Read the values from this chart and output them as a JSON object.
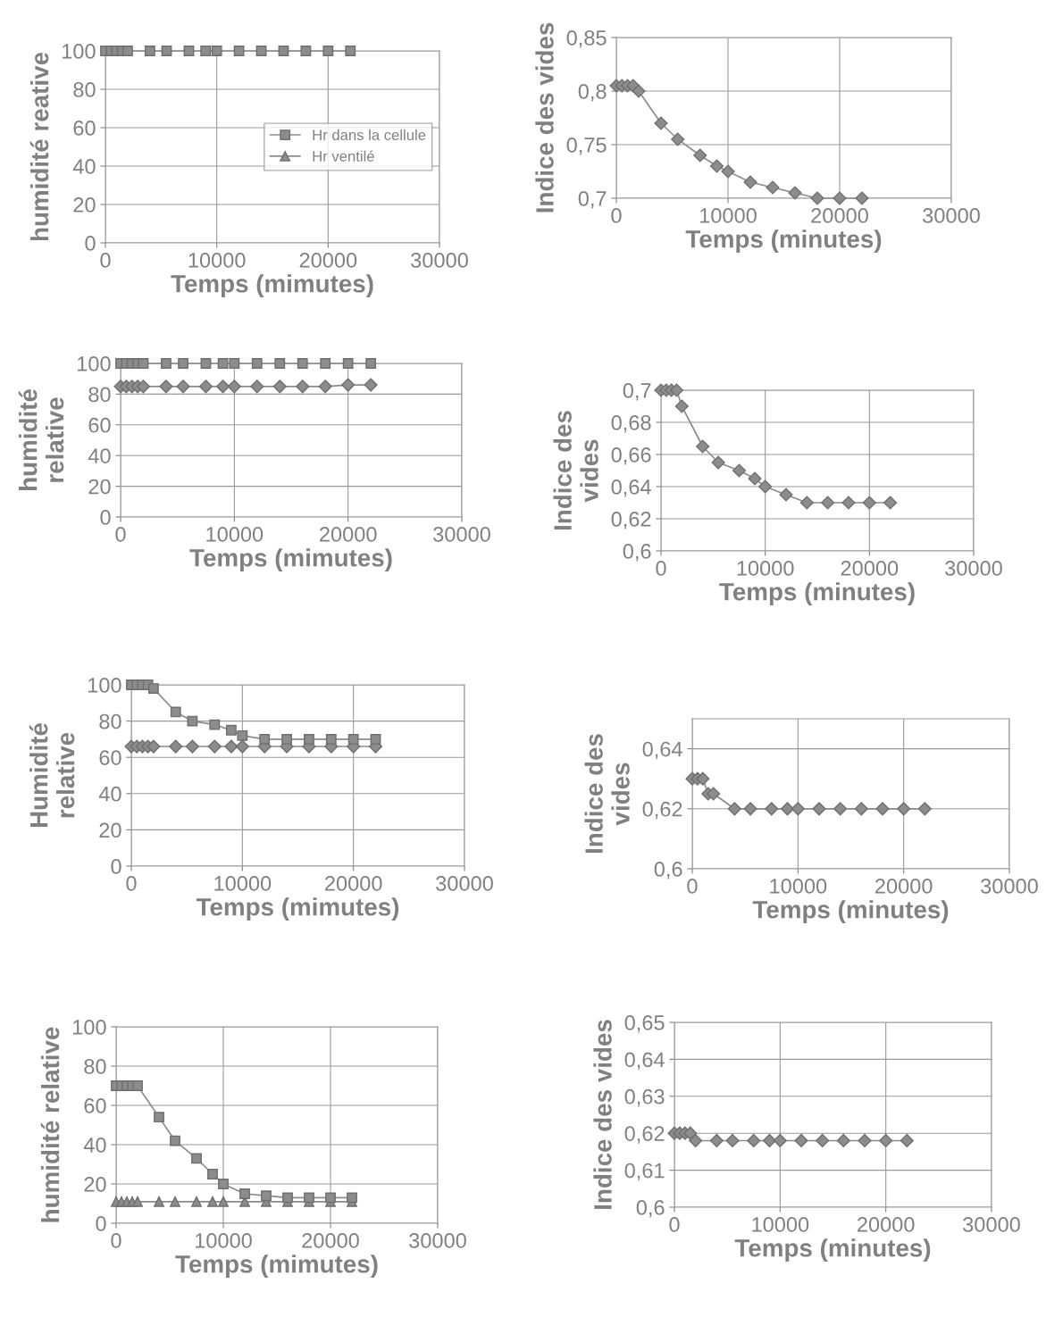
{
  "chart_data": [
    {
      "type": "line",
      "ylabel": "humidité reative",
      "xlabel": "Temps (mimutes)",
      "x": [
        0,
        500,
        1000,
        1500,
        2000,
        4000,
        5500,
        7500,
        9000,
        10000,
        12000,
        14000,
        16000,
        18000,
        20000,
        22000
      ],
      "series": [
        {
          "name": "Hr dans la cellule",
          "color": "#8c8c8c",
          "marker": "square",
          "values": [
            100,
            100,
            100,
            100,
            100,
            100,
            100,
            100,
            100,
            100,
            100,
            100,
            100,
            100,
            100,
            100
          ]
        },
        {
          "name": "Hr ventilé",
          "color": "#8c8c8c",
          "marker": "triangle",
          "values": [
            null,
            null,
            null,
            null,
            null,
            null,
            null,
            null,
            null,
            null,
            null,
            null,
            null,
            null,
            null,
            null
          ]
        }
      ],
      "xlim": [
        0,
        30000
      ],
      "xticks": [
        0,
        10000,
        20000,
        30000
      ],
      "ylim": [
        0,
        100
      ],
      "yticks": [
        0,
        20,
        40,
        60,
        80,
        100
      ],
      "grid": true,
      "legend": "right"
    },
    {
      "type": "line",
      "ylabel": "Indice des vides",
      "xlabel": "Temps (minutes)",
      "x": [
        0,
        500,
        1000,
        1500,
        2000,
        4000,
        5500,
        7500,
        9000,
        10000,
        12000,
        14000,
        16000,
        18000,
        20000,
        22000
      ],
      "series": [
        {
          "color": "#8c8c8c",
          "marker": "diamond",
          "values": [
            0.805,
            0.805,
            0.805,
            0.805,
            0.8,
            0.77,
            0.755,
            0.74,
            0.73,
            0.725,
            0.715,
            0.71,
            0.705,
            0.7,
            0.7,
            0.7
          ]
        }
      ],
      "xlim": [
        0,
        30000
      ],
      "xticks": [
        0,
        10000,
        20000,
        30000
      ],
      "ylim": [
        0.7,
        0.85
      ],
      "yticks": [
        {
          "value": 0.7,
          "label": "0,7"
        },
        {
          "value": 0.75,
          "label": "0,75"
        },
        {
          "value": 0.8,
          "label": "0,8"
        },
        {
          "value": 0.85,
          "label": "0,85"
        }
      ],
      "grid": true
    },
    {
      "type": "line",
      "ylabel": "humidité\nrelative",
      "xlabel": "Temps (mimutes)",
      "x": [
        0,
        500,
        1000,
        1500,
        2000,
        4000,
        5500,
        7500,
        9000,
        10000,
        12000,
        14000,
        16000,
        18000,
        20000,
        22000
      ],
      "series": [
        {
          "color": "#8c8c8c",
          "marker": "square",
          "values": [
            100,
            100,
            100,
            100,
            100,
            100,
            100,
            100,
            100,
            100,
            100,
            100,
            100,
            100,
            100,
            100
          ]
        },
        {
          "color": "#8c8c8c",
          "marker": "diamond",
          "values": [
            85,
            85,
            85,
            85,
            85,
            85,
            85,
            85,
            85,
            85,
            85,
            85,
            85,
            85,
            86,
            86
          ]
        }
      ],
      "xlim": [
        0,
        30000
      ],
      "xticks": [
        0,
        10000,
        20000,
        30000
      ],
      "ylim": [
        0,
        100
      ],
      "yticks": [
        0,
        20,
        40,
        60,
        80,
        100
      ],
      "grid": true
    },
    {
      "type": "line",
      "ylabel": "Indice des\nvides",
      "xlabel": "Temps (minutes)",
      "x": [
        0,
        500,
        1000,
        1500,
        2000,
        4000,
        5500,
        7500,
        9000,
        10000,
        12000,
        14000,
        16000,
        18000,
        20000,
        22000
      ],
      "series": [
        {
          "color": "#8c8c8c",
          "marker": "diamond",
          "values": [
            0.7,
            0.7,
            0.7,
            0.7,
            0.69,
            0.665,
            0.655,
            0.65,
            0.645,
            0.64,
            0.635,
            0.63,
            0.63,
            0.63,
            0.63,
            0.63
          ]
        }
      ],
      "xlim": [
        0,
        30000
      ],
      "xticks": [
        0,
        10000,
        20000,
        30000
      ],
      "ylim": [
        0.6,
        0.7
      ],
      "yticks": [
        {
          "value": 0.6,
          "label": "0,6"
        },
        {
          "value": 0.62,
          "label": "0,62"
        },
        {
          "value": 0.64,
          "label": "0,64"
        },
        {
          "value": 0.66,
          "label": "0,66"
        },
        {
          "value": 0.68,
          "label": "0,68"
        },
        {
          "value": 0.7,
          "label": "0,7"
        }
      ],
      "grid": true
    },
    {
      "type": "line",
      "ylabel": "Humidité\nrelative",
      "xlabel": "Temps (mimutes)",
      "x": [
        0,
        500,
        1000,
        1500,
        2000,
        4000,
        5500,
        7500,
        9000,
        10000,
        12000,
        14000,
        16000,
        18000,
        20000,
        22000
      ],
      "series": [
        {
          "color": "#8c8c8c",
          "marker": "square",
          "values": [
            100,
            100,
            100,
            100,
            98,
            85,
            80,
            78,
            75,
            72,
            70,
            70,
            70,
            70,
            70,
            70
          ]
        },
        {
          "color": "#8c8c8c",
          "marker": "diamond",
          "values": [
            66,
            66,
            66,
            66,
            66,
            66,
            66,
            66,
            66,
            66,
            66,
            66,
            66,
            66,
            66,
            66
          ]
        }
      ],
      "xlim": [
        0,
        30000
      ],
      "xticks": [
        0,
        10000,
        20000,
        30000
      ],
      "ylim": [
        0,
        100
      ],
      "yticks": [
        0,
        20,
        40,
        60,
        80,
        100
      ],
      "grid": true
    },
    {
      "type": "line",
      "ylabel": "Indice des\nvides",
      "xlabel": "Temps (minutes)",
      "x": [
        0,
        500,
        1000,
        1500,
        2000,
        4000,
        5500,
        7500,
        9000,
        10000,
        12000,
        14000,
        16000,
        18000,
        20000,
        22000
      ],
      "series": [
        {
          "color": "#8c8c8c",
          "marker": "diamond",
          "values": [
            0.63,
            0.63,
            0.63,
            0.625,
            0.625,
            0.62,
            0.62,
            0.62,
            0.62,
            0.62,
            0.62,
            0.62,
            0.62,
            0.62,
            0.62,
            0.62
          ]
        }
      ],
      "xlim": [
        0,
        30000
      ],
      "xticks": [
        0,
        10000,
        20000,
        30000
      ],
      "ylim": [
        0.6,
        0.65
      ],
      "yticks": [
        {
          "value": 0.6,
          "label": "0,6"
        },
        {
          "value": 0.62,
          "label": "0,62"
        },
        {
          "value": 0.64,
          "label": "0,64"
        }
      ],
      "grid": true
    },
    {
      "type": "line",
      "ylabel": "humidité relative",
      "xlabel": "Temps (mimutes)",
      "x": [
        0,
        500,
        1000,
        1500,
        2000,
        4000,
        5500,
        7500,
        9000,
        10000,
        12000,
        14000,
        16000,
        18000,
        20000,
        22000
      ],
      "series": [
        {
          "color": "#8c8c8c",
          "marker": "square",
          "values": [
            70,
            70,
            70,
            70,
            70,
            54,
            42,
            33,
            25,
            20,
            15,
            14,
            13,
            13,
            13,
            13
          ]
        },
        {
          "color": "#8c8c8c",
          "marker": "triangle",
          "values": [
            11,
            11,
            11,
            11,
            11,
            11,
            11,
            11,
            11,
            11,
            11,
            11,
            11,
            11,
            11,
            11
          ]
        }
      ],
      "xlim": [
        0,
        30000
      ],
      "xticks": [
        0,
        10000,
        20000,
        30000
      ],
      "ylim": [
        0,
        100
      ],
      "yticks": [
        0,
        20,
        40,
        60,
        80,
        100
      ],
      "grid": true
    },
    {
      "type": "line",
      "ylabel": "Indice des vides",
      "xlabel": "Temps (minutes)",
      "x": [
        0,
        500,
        1000,
        1500,
        2000,
        4000,
        5500,
        7500,
        9000,
        10000,
        12000,
        14000,
        16000,
        18000,
        20000,
        22000
      ],
      "series": [
        {
          "color": "#8c8c8c",
          "marker": "diamond",
          "values": [
            0.62,
            0.62,
            0.62,
            0.62,
            0.618,
            0.618,
            0.618,
            0.618,
            0.618,
            0.618,
            0.618,
            0.618,
            0.618,
            0.618,
            0.618,
            0.618
          ]
        }
      ],
      "xlim": [
        0,
        30000
      ],
      "xticks": [
        0,
        10000,
        20000,
        30000
      ],
      "ylim": [
        0.6,
        0.65
      ],
      "yticks": [
        {
          "value": 0.6,
          "label": "0,6"
        },
        {
          "value": 0.61,
          "label": "0,61"
        },
        {
          "value": 0.62,
          "label": "0,62"
        },
        {
          "value": 0.63,
          "label": "0,63"
        },
        {
          "value": 0.64,
          "label": "0,64"
        },
        {
          "value": 0.65,
          "label": "0,65"
        }
      ],
      "grid": true
    }
  ]
}
